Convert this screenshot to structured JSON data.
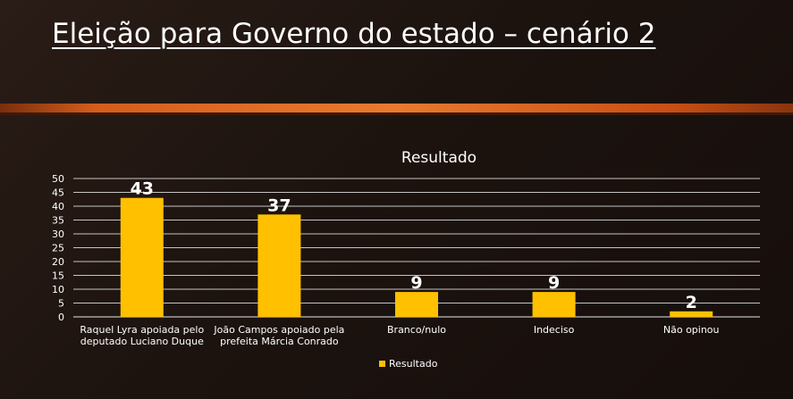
{
  "slide": {
    "title": "Eleição para Governo do estado – cenário 2"
  },
  "colors": {
    "bar": "#FFC000",
    "text": "#FFFFFF",
    "grid": "#FFFFFF",
    "accent": "#E87A2E"
  },
  "chart_data": {
    "type": "bar",
    "title": "Resultado",
    "categories": [
      "Raquel Lyra apoiada pelo deputado Luciano Duque",
      "João Campos apoiado pela prefeita Márcia Conrado",
      "Branco/nulo",
      "Indeciso",
      "Não opinou"
    ],
    "category_lines": [
      [
        "Raquel Lyra apoiada pelo",
        "deputado Luciano Duque"
      ],
      [
        "João Campos apoiado pela",
        "prefeita Márcia Conrado"
      ],
      [
        "Branco/nulo"
      ],
      [
        "Indeciso"
      ],
      [
        "Não opinou"
      ]
    ],
    "series": [
      {
        "name": "Resultado",
        "values": [
          43,
          37,
          9,
          9,
          2
        ]
      }
    ],
    "ylim": [
      0,
      50
    ],
    "yticks": [
      0,
      5,
      10,
      15,
      20,
      25,
      30,
      35,
      40,
      45,
      50
    ],
    "grid": true,
    "legend_position": "bottom"
  }
}
